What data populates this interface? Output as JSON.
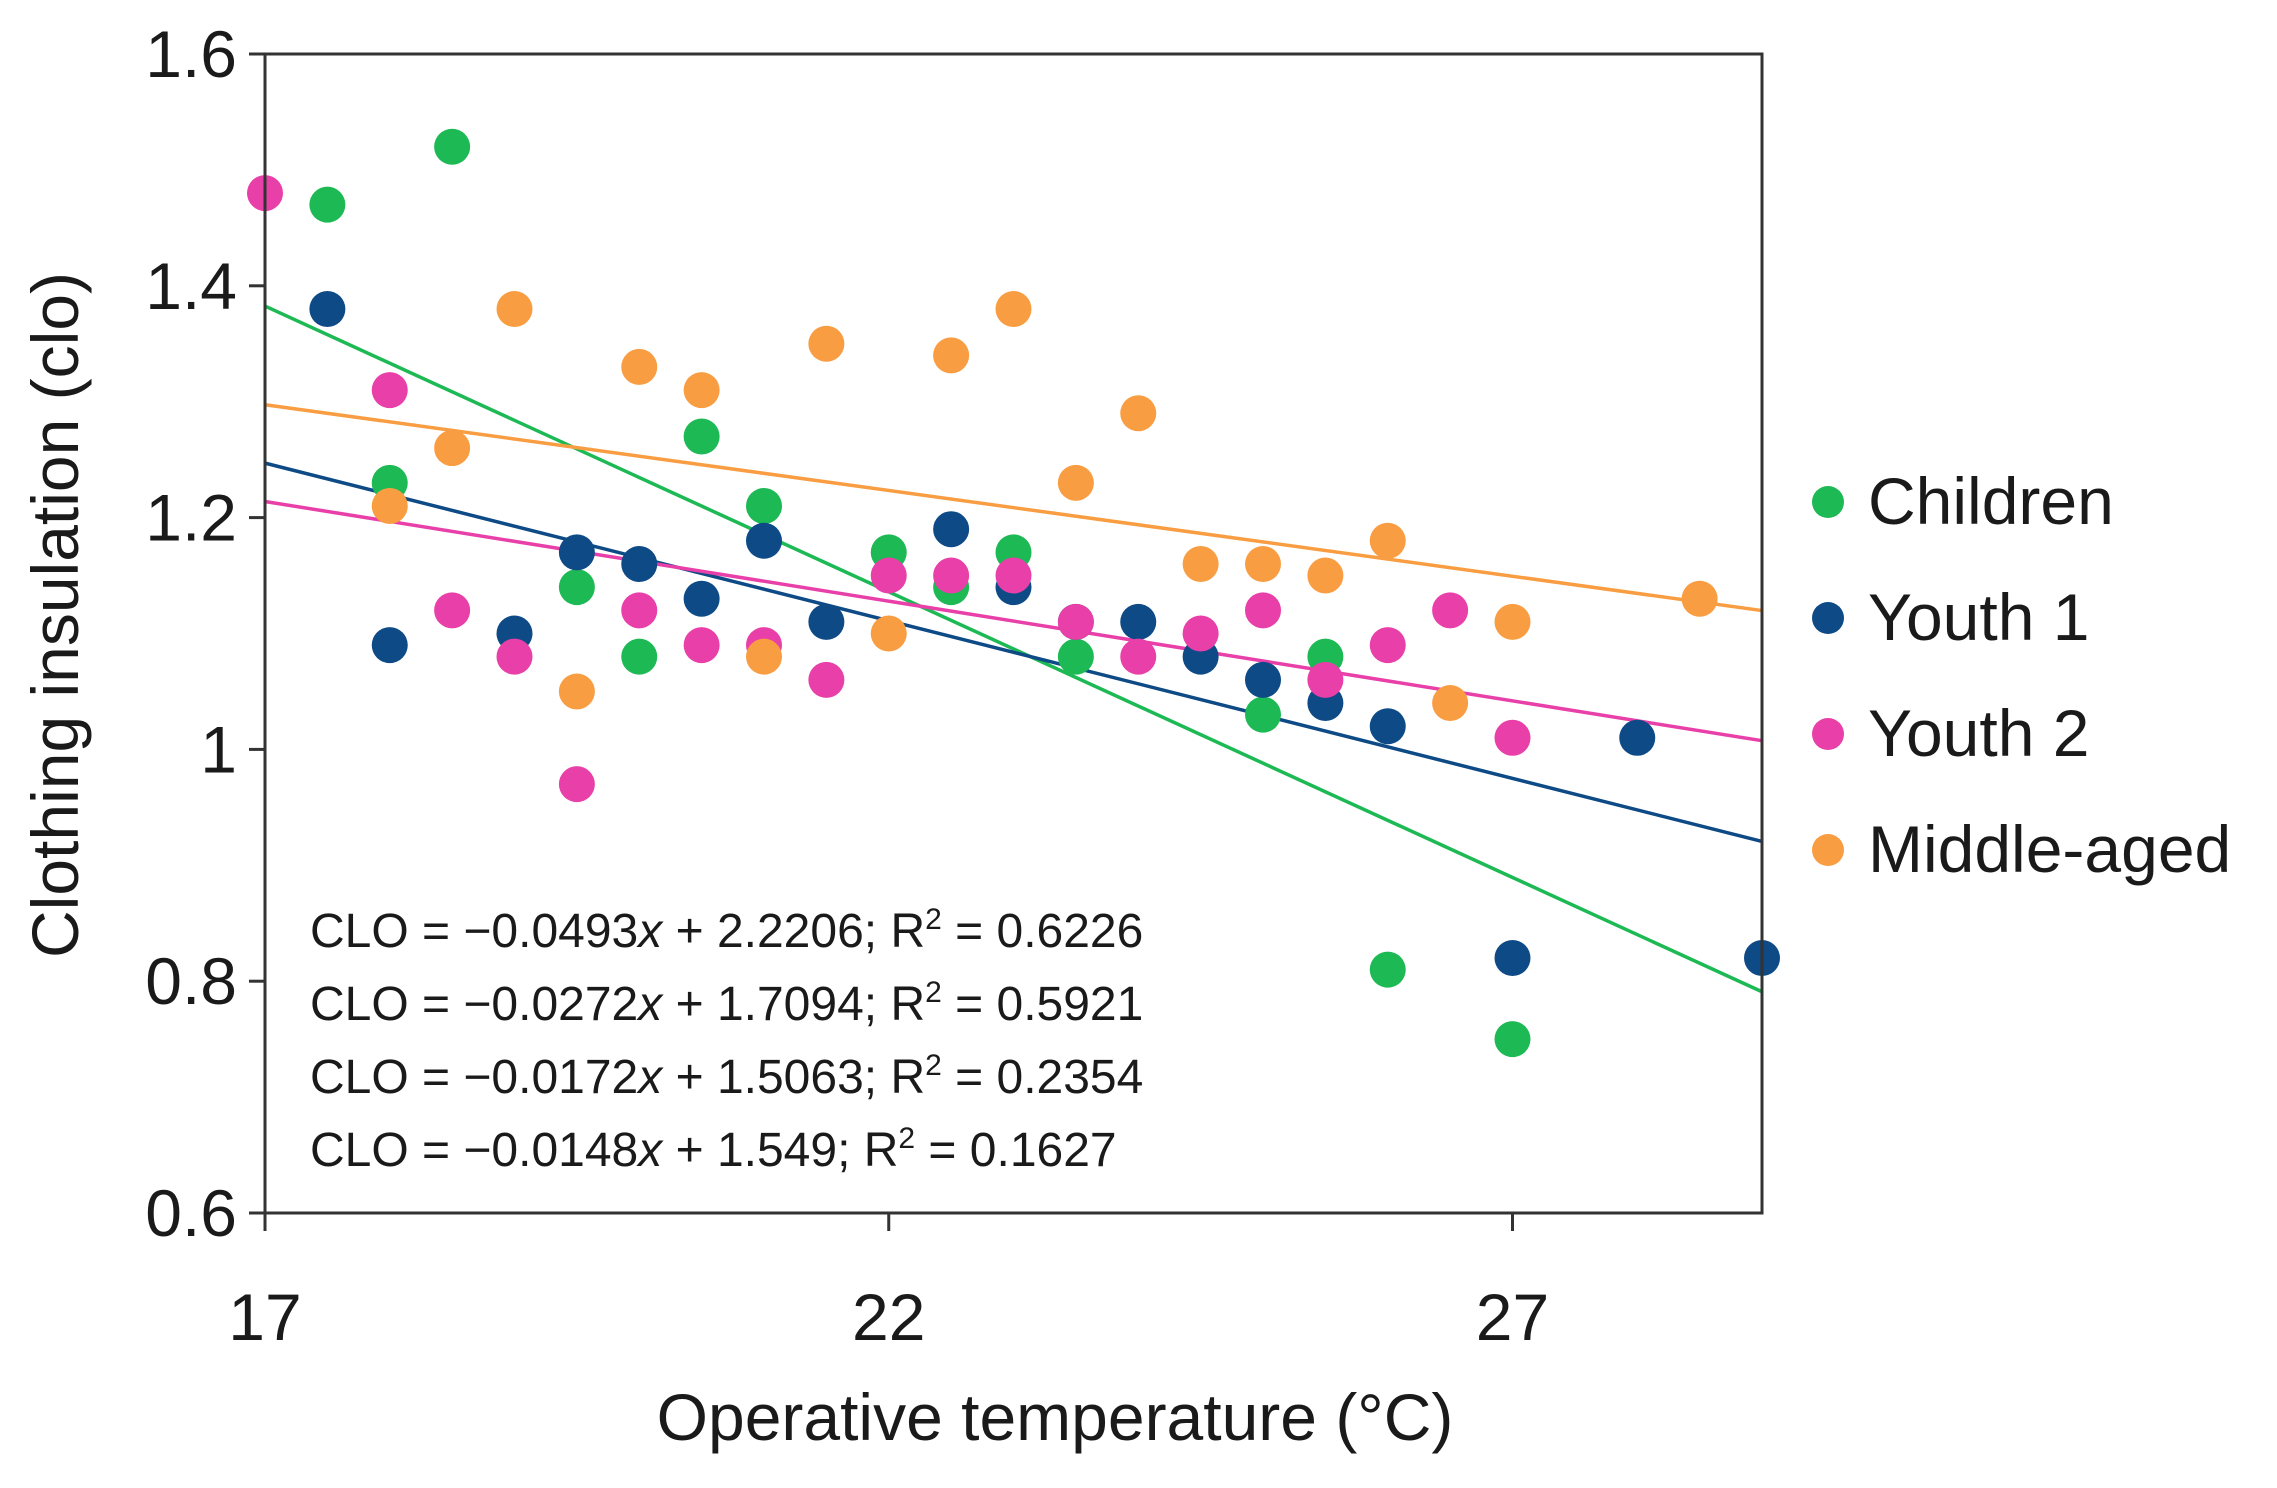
{
  "chart_data": {
    "type": "scatter",
    "xlabel": "Operative temperature (°C)",
    "ylabel": "Clothing insulation (clo)",
    "xlim": [
      17,
      29
    ],
    "ylim": [
      0.6,
      1.6
    ],
    "xticks": [
      17,
      22,
      27
    ],
    "yticks": [
      0.6,
      0.8,
      1,
      1.2,
      1.4,
      1.6
    ],
    "ytick_labels": [
      "0.6",
      "0.8",
      "1",
      "1.2",
      "1.4",
      "1.6"
    ],
    "legend_position": "right",
    "series": [
      {
        "name": "Children",
        "color": "#1db954",
        "trend": {
          "slope": -0.0493,
          "intercept": 2.2206
        },
        "equation": {
          "prefix": "CLO = −0.0493",
          "var": "x",
          "rest": " + 2.2206; R",
          "sup": "2",
          "tail": " = 0.6226"
        },
        "points": [
          [
            17.5,
            1.47
          ],
          [
            18,
            1.23
          ],
          [
            18.5,
            1.52
          ],
          [
            19.5,
            1.14
          ],
          [
            20,
            1.08
          ],
          [
            20.5,
            1.27
          ],
          [
            21,
            1.21
          ],
          [
            22,
            1.17
          ],
          [
            22.5,
            1.14
          ],
          [
            23,
            1.17
          ],
          [
            23.5,
            1.08
          ],
          [
            25,
            1.03
          ],
          [
            25.5,
            1.08
          ],
          [
            26,
            0.81
          ],
          [
            27,
            0.75
          ]
        ]
      },
      {
        "name": "Youth 1",
        "color": "#0d4a86",
        "trend": {
          "slope": -0.0272,
          "intercept": 1.7094
        },
        "equation": {
          "prefix": "CLO = −0.0272",
          "var": "x",
          "rest": " + 1.7094; R",
          "sup": "2",
          "tail": " = 0.5921"
        },
        "points": [
          [
            17.5,
            1.38
          ],
          [
            18,
            1.09
          ],
          [
            19,
            1.1
          ],
          [
            19.5,
            1.17
          ],
          [
            20,
            1.16
          ],
          [
            20.5,
            1.13
          ],
          [
            21,
            1.18
          ],
          [
            21.5,
            1.11
          ],
          [
            22.5,
            1.19
          ],
          [
            23,
            1.14
          ],
          [
            23.5,
            1.11
          ],
          [
            24,
            1.11
          ],
          [
            24.5,
            1.08
          ],
          [
            25,
            1.06
          ],
          [
            25.5,
            1.04
          ],
          [
            26,
            1.02
          ],
          [
            27,
            0.82
          ],
          [
            28,
            1.01
          ],
          [
            29,
            0.82
          ]
        ]
      },
      {
        "name": "Youth 2",
        "color": "#e83fa8",
        "trend": {
          "slope": -0.0172,
          "intercept": 1.5063
        },
        "equation": {
          "prefix": "CLO = −0.0172",
          "var": "x",
          "rest": " + 1.5063; R",
          "sup": "2",
          "tail": " = 0.2354"
        },
        "points": [
          [
            17,
            1.48
          ],
          [
            18,
            1.31
          ],
          [
            18.5,
            1.12
          ],
          [
            19,
            1.08
          ],
          [
            19.5,
            0.97
          ],
          [
            20,
            1.12
          ],
          [
            20.5,
            1.09
          ],
          [
            21,
            1.09
          ],
          [
            21.5,
            1.06
          ],
          [
            22,
            1.15
          ],
          [
            22.5,
            1.15
          ],
          [
            23,
            1.15
          ],
          [
            23.5,
            1.11
          ],
          [
            24,
            1.08
          ],
          [
            24.5,
            1.1
          ],
          [
            25,
            1.12
          ],
          [
            25.5,
            1.06
          ],
          [
            26,
            1.09
          ],
          [
            26.5,
            1.12
          ],
          [
            27,
            1.01
          ]
        ]
      },
      {
        "name": "Middle-aged",
        "color": "#f99d42",
        "trend": {
          "slope": -0.0148,
          "intercept": 1.549
        },
        "equation": {
          "prefix": "CLO = −0.0148",
          "var": "x",
          "rest": " + 1.549; R",
          "sup": "2",
          "tail": " = 0.1627"
        },
        "points": [
          [
            18,
            1.21
          ],
          [
            18.5,
            1.26
          ],
          [
            19,
            1.38
          ],
          [
            19.5,
            1.05
          ],
          [
            20,
            1.33
          ],
          [
            20.5,
            1.31
          ],
          [
            21,
            1.08
          ],
          [
            21.5,
            1.35
          ],
          [
            22,
            1.1
          ],
          [
            22.5,
            1.34
          ],
          [
            23,
            1.38
          ],
          [
            23.5,
            1.23
          ],
          [
            24,
            1.29
          ],
          [
            24.5,
            1.16
          ],
          [
            25,
            1.16
          ],
          [
            25.5,
            1.15
          ],
          [
            26,
            1.18
          ],
          [
            26.5,
            1.04
          ],
          [
            27,
            1.11
          ],
          [
            28.5,
            1.13
          ]
        ]
      }
    ]
  }
}
